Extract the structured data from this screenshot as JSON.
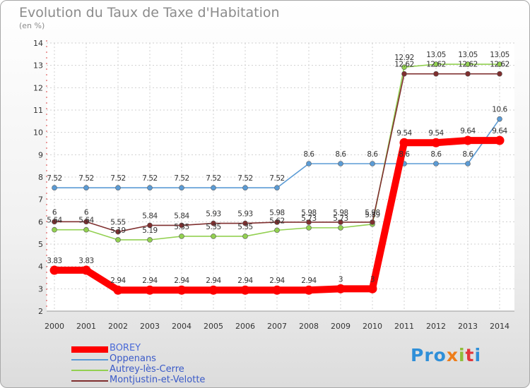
{
  "title": "Evolution du Taux de Taxe d'Habitation",
  "subtitle": "(en %)",
  "logo": {
    "p1": "Pro",
    "p2": "x",
    "p3": "i",
    "p4": "t",
    "p5": "i"
  },
  "chart_data": {
    "type": "line",
    "x": [
      "2000",
      "2001",
      "2002",
      "2003",
      "2004",
      "2005",
      "2006",
      "2007",
      "2008",
      "2009",
      "2010",
      "2011",
      "2012",
      "2013",
      "2014"
    ],
    "ylim": [
      2,
      14
    ],
    "yticks": [
      2,
      3,
      4,
      5,
      6,
      7,
      8,
      9,
      10,
      11,
      12,
      13,
      14
    ],
    "grid": true,
    "legend_position": "bottom-left",
    "series": [
      {
        "name": "BOREY",
        "color": "#ff0000",
        "values": [
          3.83,
          3.83,
          2.94,
          2.94,
          2.94,
          2.94,
          2.94,
          2.94,
          2.94,
          3,
          3,
          9.54,
          9.54,
          9.64,
          9.64
        ],
        "labels": [
          "3.83",
          "3.83",
          "2.94",
          "2.94",
          "2.94",
          "2.94",
          "2.94",
          "2.94",
          "2.94",
          "3",
          "3",
          "9.54",
          "9.54",
          "9.64",
          "9.64"
        ]
      },
      {
        "name": "Oppenans",
        "color": "#5b9bd5",
        "values": [
          7.52,
          7.52,
          7.52,
          7.52,
          7.52,
          7.52,
          7.52,
          7.52,
          8.6,
          8.6,
          8.6,
          8.6,
          8.6,
          8.6,
          10.6
        ],
        "labels": [
          "7.52",
          "7.52",
          "7.52",
          "7.52",
          "7.52",
          "7.52",
          "7.52",
          "7.52",
          "8.6",
          "8.6",
          "8.6",
          "8.6",
          "8.6",
          "8.6",
          "10.6"
        ]
      },
      {
        "name": "Autrey-lès-Cerre",
        "color": "#92d050",
        "values": [
          5.64,
          5.64,
          5.19,
          5.19,
          5.35,
          5.35,
          5.35,
          5.62,
          5.73,
          5.73,
          5.89,
          12.92,
          13.05,
          13.05,
          13.05
        ],
        "labels": [
          "5.64",
          "5.64",
          "5.19",
          "5.19",
          "5.35",
          "5.35",
          "5.35",
          "5.62",
          "5.73",
          "5.73",
          "5.89",
          "12.92",
          "13.05",
          "13.05",
          "13.05"
        ]
      },
      {
        "name": "Montjustin-et-Velotte",
        "color": "#7f2f2f",
        "values": [
          6,
          6,
          5.55,
          5.84,
          5.84,
          5.93,
          5.93,
          5.98,
          5.98,
          5.98,
          5.98,
          12.62,
          12.62,
          12.62,
          12.62
        ],
        "labels": [
          "6",
          "6",
          "5.55",
          "5.84",
          "5.84",
          "5.93",
          "5.93",
          "5.98",
          "5.98",
          "5.98",
          "5.98",
          "12.62",
          "12.62",
          "12.62",
          "12.62"
        ]
      }
    ]
  }
}
